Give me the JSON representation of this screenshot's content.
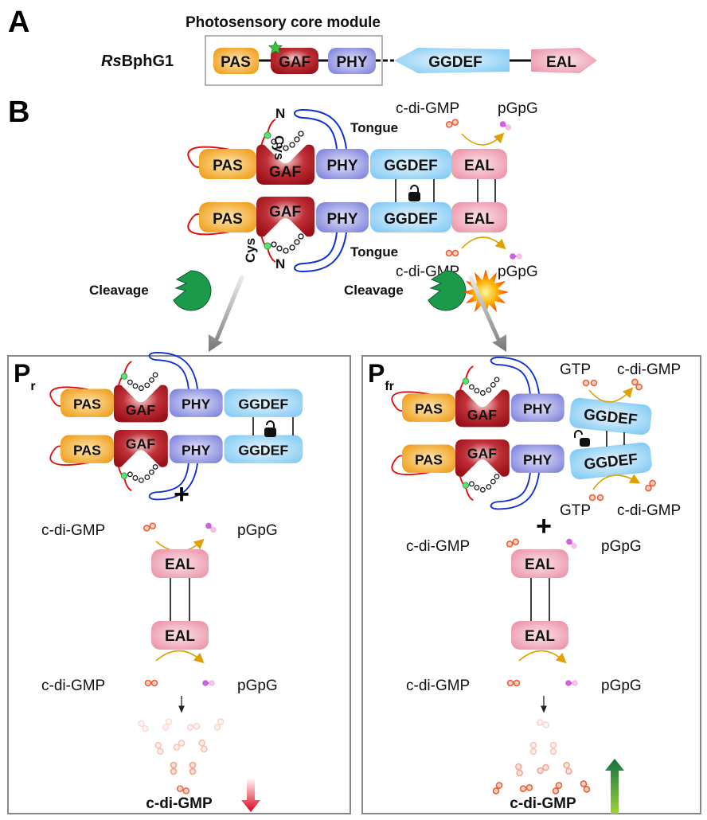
{
  "panel_a": {
    "label": "A",
    "module_title": "Photosensory core module",
    "protein_italic": "Rs",
    "protein_rest": "BphG1",
    "domains": [
      "PAS",
      "GAF",
      "PHY",
      "GGDEF",
      "EAL"
    ]
  },
  "panel_b": {
    "label": "B",
    "domains": [
      "PAS",
      "GAF",
      "PHY",
      "GGDEF",
      "EAL"
    ],
    "cys": "Cys",
    "n_term": "N",
    "tongue": "Tongue",
    "substrate": "c-di-GMP",
    "product": "pGpG",
    "cleavage": "Cleavage"
  },
  "panel_pr": {
    "label": "P",
    "subscript": "r",
    "plus": "+",
    "substrate": "c-di-GMP",
    "product": "pGpG",
    "result": "c-di-GMP",
    "trend": "down"
  },
  "panel_pfr": {
    "label": "P",
    "subscript": "fr",
    "gtp": "GTP",
    "cdg": "c-di-GMP",
    "plus": "+",
    "substrate": "c-di-GMP",
    "product": "pGpG",
    "result": "c-di-GMP",
    "trend": "up"
  },
  "colors": {
    "pas": "#f0a020",
    "gaf": "#a81a22",
    "phy": "#8c8ee0",
    "ggdef": "#8fd0f5",
    "eal": "#ef9aae",
    "linker_red": "#e01010",
    "tongue_blue": "#1030d0",
    "cdg_orange": "#e8603a",
    "pgpg_magenta": "#d060e0",
    "down_arrow": "#e0001a",
    "up_arrow": "#1a7a3a"
  }
}
